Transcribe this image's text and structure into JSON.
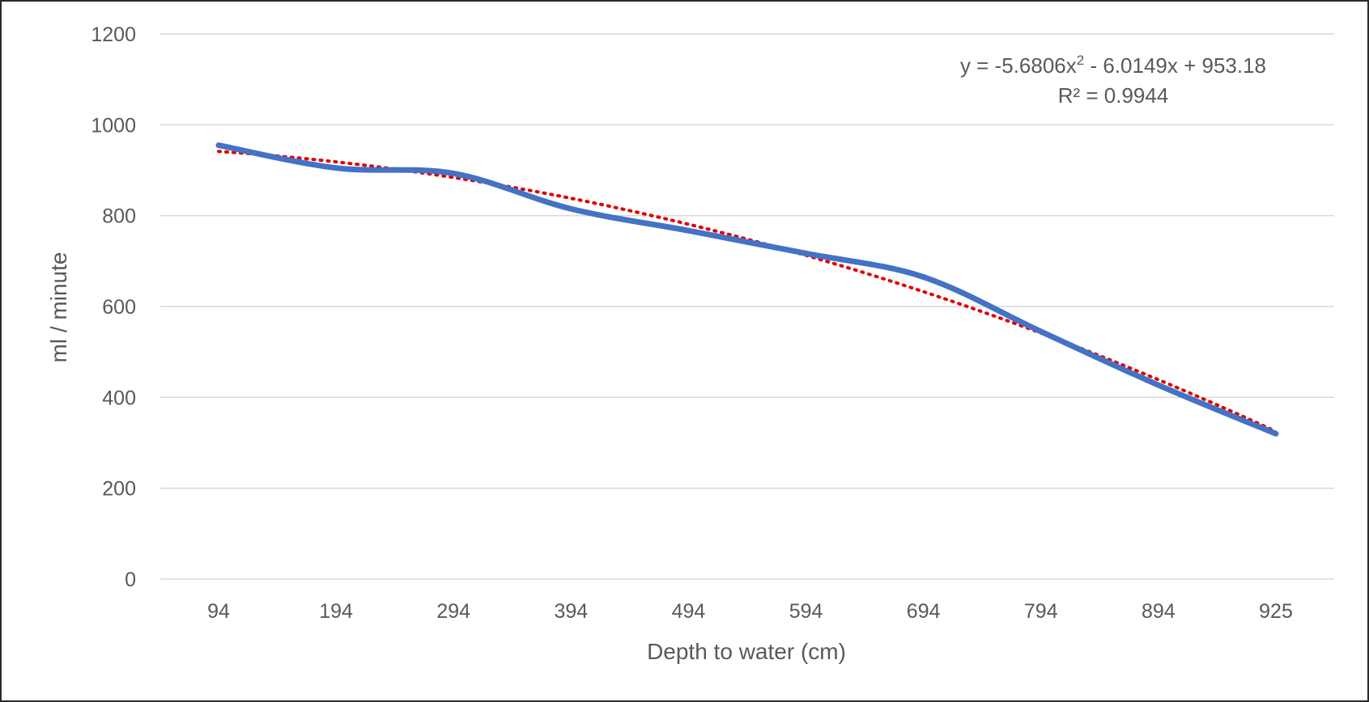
{
  "chart_data": {
    "type": "line",
    "categories": [
      "94",
      "194",
      "294",
      "394",
      "494",
      "594",
      "694",
      "794",
      "894",
      "925"
    ],
    "series": [
      {
        "values": [
          955,
          905,
          893,
          815,
          767,
          717,
          665,
          545,
          427,
          320
        ],
        "color": "#4472C4",
        "style": "solid"
      }
    ],
    "trendline": {
      "type": "polynomial",
      "order": 2,
      "color": "#E00000",
      "style": "dotted",
      "equation_prefix": "y = -5.6806x",
      "equation_exponent": "2",
      "equation_suffix": " - 6.0149x + 953.18",
      "r_squared_text": "R² = 0.9944",
      "coefficients": {
        "a": -5.6806,
        "b": -6.0149,
        "c": 953.18
      }
    },
    "xlabel": "Depth to water (cm)",
    "ylabel": "ml / minute",
    "ylim": [
      0,
      1200
    ],
    "yticks": [
      0,
      200,
      400,
      600,
      800,
      1000,
      1200
    ],
    "grid": true,
    "legend": "none"
  }
}
